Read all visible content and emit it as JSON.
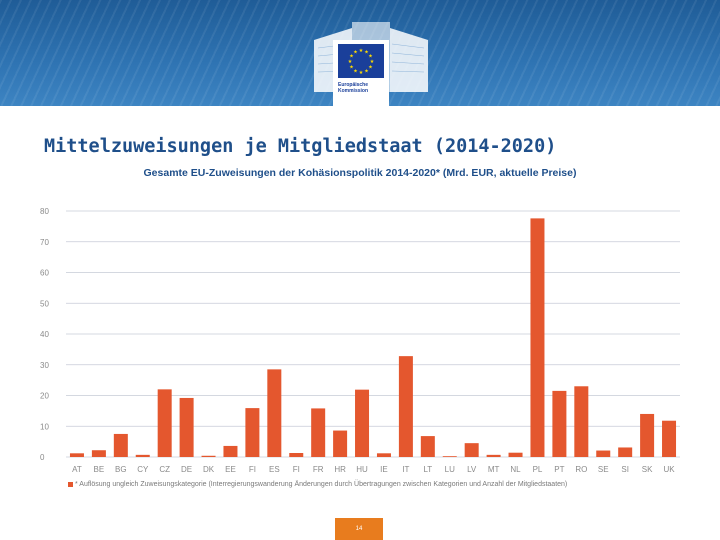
{
  "header": {
    "logo_text": "Europäische Kommission"
  },
  "slide": {
    "title": "Mittelzuweisungen je Mitgliedstaat (2014-2020)",
    "page_number": "14"
  },
  "colors": {
    "banner": "#2f74b3",
    "bar": "#e4572e",
    "title": "#1f4f8a",
    "page_badge": "#e87c1e"
  },
  "chart_data": {
    "type": "bar",
    "title": "Gesamte EU-Zuweisungen der Kohäsionspolitik 2014-2020* (Mrd. EUR, aktuelle Preise)",
    "xlabel": "",
    "ylabel": "",
    "categories": [
      "AT",
      "BE",
      "BG",
      "CY",
      "CZ",
      "DE",
      "DK",
      "EE",
      "FI",
      "ES",
      "FI",
      "FR",
      "HR",
      "HU",
      "IE",
      "IT",
      "LT",
      "LU",
      "LV",
      "MT",
      "NL",
      "PL",
      "PT",
      "RO",
      "SE",
      "SI",
      "SK",
      "UK"
    ],
    "values": [
      1.2,
      2.2,
      7.5,
      0.7,
      22,
      19.2,
      0.4,
      3.6,
      15.9,
      28.5,
      1.3,
      15.8,
      8.6,
      21.9,
      1.2,
      32.8,
      6.8,
      0.06,
      4.5,
      0.7,
      1.4,
      77.6,
      21.5,
      23,
      2.1,
      3.1,
      14,
      11.8
    ],
    "yticks": [
      0,
      10,
      20,
      30,
      40,
      50,
      60,
      70,
      80
    ],
    "ylim": [
      0,
      80
    ],
    "grid": true,
    "legend_text": "* Auflösung ungleich Zuweisungskategorie (Interregierungswanderung Änderungen durch Übertragungen zwischen Kategorien und Anzahl der Mitgliedstaaten)"
  }
}
